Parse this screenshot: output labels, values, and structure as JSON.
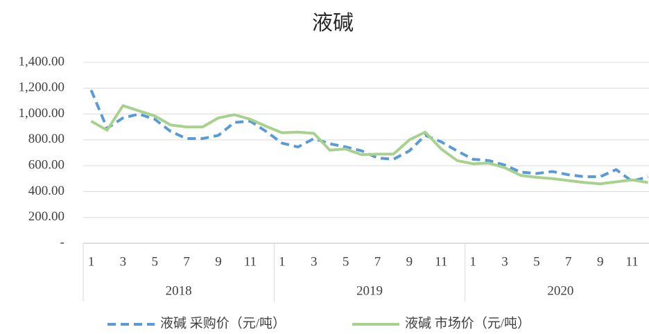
{
  "chart_data": {
    "type": "line",
    "title": "液碱",
    "categories": [
      "1",
      null,
      "3",
      null,
      "5",
      null,
      "7",
      null,
      "9",
      null,
      "11",
      null,
      "1",
      null,
      "3",
      null,
      "5",
      null,
      "7",
      null,
      "9",
      null,
      "11",
      null,
      "1",
      null,
      "3",
      null,
      "5",
      null,
      "7",
      null,
      "9",
      null,
      "11",
      null
    ],
    "groups": [
      "2018",
      "2019",
      "2020"
    ],
    "series": [
      {
        "name": "液碱 采购价（元/吨）",
        "color": "#5b9bd5",
        "dash": true,
        "values": [
          1185,
          890,
          970,
          1000,
          960,
          865,
          810,
          810,
          835,
          935,
          945,
          865,
          775,
          745,
          810,
          770,
          745,
          715,
          660,
          650,
          715,
          835,
          785,
          715,
          650,
          640,
          605,
          550,
          540,
          555,
          530,
          515,
          515,
          570,
          480,
          515
        ]
      },
      {
        "name": "液碱 市场价（元/吨）",
        "color": "#a9d18e",
        "dash": false,
        "values": [
          945,
          875,
          1065,
          1025,
          985,
          915,
          900,
          900,
          970,
          995,
          960,
          905,
          855,
          860,
          850,
          720,
          730,
          685,
          690,
          690,
          800,
          860,
          730,
          640,
          615,
          620,
          585,
          525,
          510,
          500,
          485,
          470,
          460,
          475,
          490,
          470
        ]
      }
    ],
    "ylim": [
      0,
      1400
    ],
    "yticks": [
      {
        "value": 0,
        "label": "-"
      },
      {
        "value": 200,
        "label": "200.00"
      },
      {
        "value": 400,
        "label": "400.00"
      },
      {
        "value": 600,
        "label": "600.00"
      },
      {
        "value": 800,
        "label": "800.00"
      },
      {
        "value": 1000,
        "label": "1,000.00"
      },
      {
        "value": 1200,
        "label": "1,200.00"
      },
      {
        "value": 1400,
        "label": "1,400.00"
      }
    ],
    "grid": true
  }
}
